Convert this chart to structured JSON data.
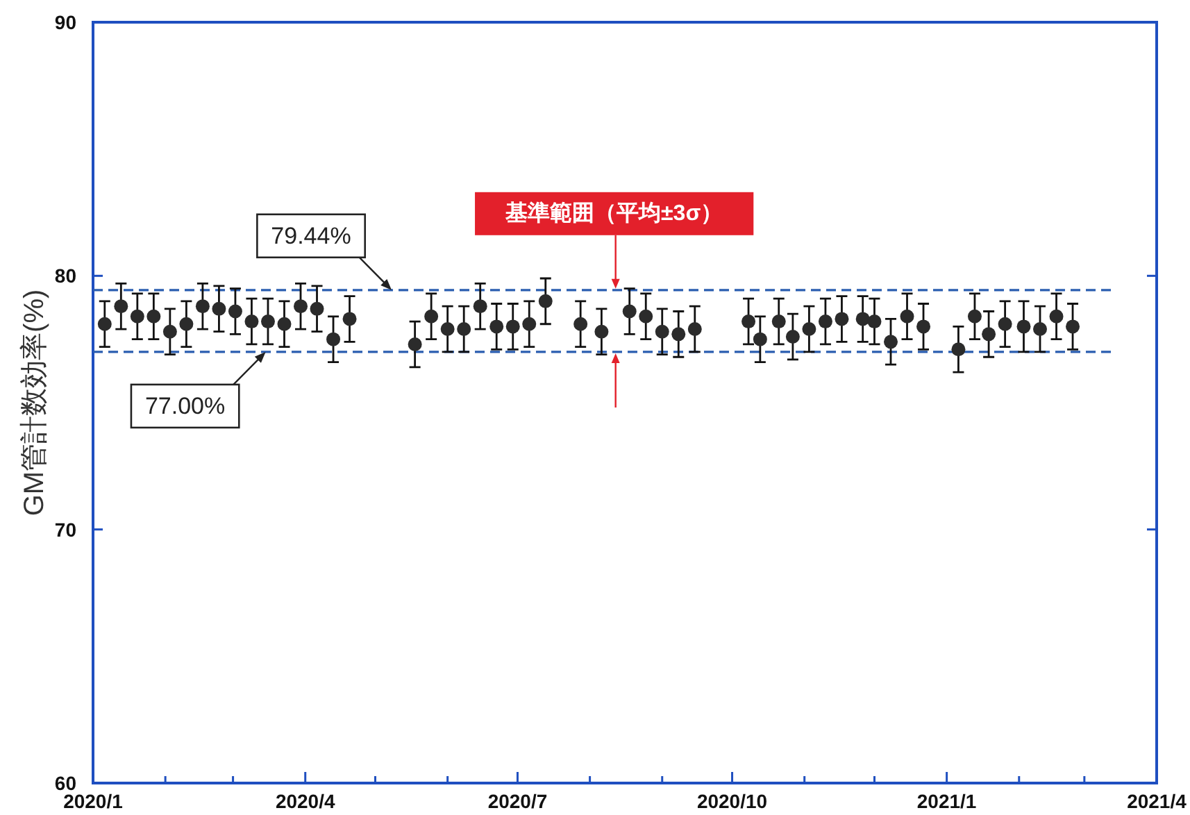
{
  "chart_data": {
    "type": "scatter",
    "ylabel": "GM管計数効率(%)",
    "x": [
      "2020-01-06",
      "2020-01-13",
      "2020-01-20",
      "2020-01-27",
      "2020-02-03",
      "2020-02-10",
      "2020-02-17",
      "2020-02-24",
      "2020-03-02",
      "2020-03-09",
      "2020-03-16",
      "2020-03-23",
      "2020-03-30",
      "2020-04-06",
      "2020-04-13",
      "2020-04-20",
      "2020-05-18",
      "2020-05-25",
      "2020-06-01",
      "2020-06-08",
      "2020-06-15",
      "2020-06-22",
      "2020-06-29",
      "2020-07-06",
      "2020-07-13",
      "2020-07-28",
      "2020-08-06",
      "2020-08-18",
      "2020-08-25",
      "2020-09-01",
      "2020-09-08",
      "2020-09-15",
      "2020-10-08",
      "2020-10-13",
      "2020-10-21",
      "2020-10-27",
      "2020-11-03",
      "2020-11-10",
      "2020-11-17",
      "2020-11-26",
      "2020-12-01",
      "2020-12-08",
      "2020-12-15",
      "2020-12-22",
      "2021-01-06",
      "2021-01-13",
      "2021-01-19",
      "2021-01-26",
      "2021-02-03",
      "2021-02-10",
      "2021-02-17",
      "2021-02-24"
    ],
    "values": [
      78.1,
      78.8,
      78.4,
      78.4,
      77.8,
      78.1,
      78.8,
      78.7,
      78.6,
      78.2,
      78.2,
      78.1,
      78.8,
      78.7,
      77.5,
      78.3,
      77.3,
      78.4,
      77.9,
      77.9,
      78.8,
      78.0,
      78.0,
      78.1,
      79.0,
      78.1,
      77.8,
      78.6,
      78.4,
      77.8,
      77.7,
      77.9,
      78.2,
      77.5,
      78.2,
      77.6,
      77.9,
      78.2,
      78.3,
      78.3,
      78.2,
      77.4,
      78.4,
      78.0,
      77.1,
      78.4,
      77.7,
      78.1,
      78.0,
      77.9,
      78.4,
      78.0
    ],
    "errors": [
      0.9,
      0.9,
      0.9,
      0.9,
      0.9,
      0.9,
      0.9,
      0.9,
      0.9,
      0.9,
      0.9,
      0.9,
      0.9,
      0.9,
      0.9,
      0.9,
      0.9,
      0.9,
      0.9,
      0.9,
      0.9,
      0.9,
      0.9,
      0.9,
      0.9,
      0.9,
      0.9,
      0.9,
      0.9,
      0.9,
      0.9,
      0.9,
      0.9,
      0.9,
      0.9,
      0.9,
      0.9,
      0.9,
      0.9,
      0.9,
      0.9,
      0.9,
      0.9,
      0.9,
      0.9,
      0.9,
      0.9,
      0.9,
      1.0,
      0.9,
      0.9,
      0.9
    ],
    "color": "#2b2b2b",
    "marker": "circle",
    "xlim": [
      "2020-01",
      "2021-04"
    ],
    "xticks": [
      {
        "value": "2020-01",
        "label": "2020/1"
      },
      {
        "value": "2020-02",
        "label": null
      },
      {
        "value": "2020-03",
        "label": null
      },
      {
        "value": "2020-04",
        "label": "2020/4"
      },
      {
        "value": "2020-05",
        "label": null
      },
      {
        "value": "2020-06",
        "label": null
      },
      {
        "value": "2020-07",
        "label": "2020/7"
      },
      {
        "value": "2020-08",
        "label": null
      },
      {
        "value": "2020-09",
        "label": null
      },
      {
        "value": "2020-10",
        "label": "2020/10"
      },
      {
        "value": "2020-11",
        "label": null
      },
      {
        "value": "2020-12",
        "label": null
      },
      {
        "value": "2021-01",
        "label": "2021/1"
      },
      {
        "value": "2021-02",
        "label": null
      },
      {
        "value": "2021-03",
        "label": null
      },
      {
        "value": "2021-04",
        "label": "2021/4"
      }
    ],
    "ylim": [
      60,
      90
    ],
    "yticks": [
      60,
      70,
      80,
      90
    ],
    "ref_lines": [
      {
        "axis": "y",
        "value": 79.44,
        "color": "#2a5db0",
        "line_style": "dashed"
      },
      {
        "axis": "y",
        "value": 77.0,
        "color": "#2a5db0",
        "line_style": "dashed"
      }
    ],
    "annotations": [
      {
        "text": "79.44%",
        "x": "2020-05-08",
        "y": 79.44
      },
      {
        "text": "77.00%",
        "x": "2020-03-15",
        "y": 77.0
      },
      "基準範囲（平均±3σ）"
    ]
  }
}
